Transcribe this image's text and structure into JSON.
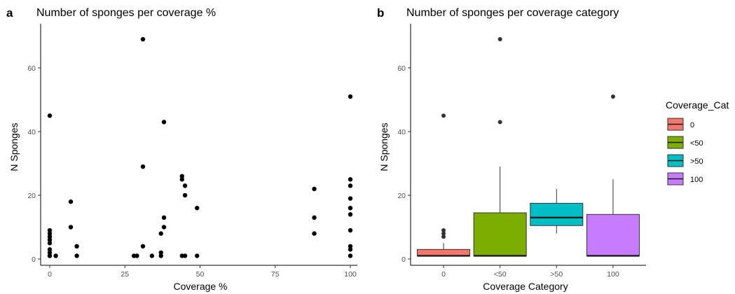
{
  "chart_data": [
    {
      "panel": "a",
      "type": "scatter",
      "title": "Number of sponges per coverage %",
      "xlabel": "Coverage %",
      "ylabel": "N Sponges",
      "xlim": [
        0,
        100
      ],
      "ylim": [
        0,
        70
      ],
      "xticks": [
        0,
        25,
        50,
        75,
        100
      ],
      "yticks": [
        0,
        20,
        40,
        60
      ],
      "grid": false,
      "point_color": "#000000",
      "points": [
        [
          0,
          45
        ],
        [
          0,
          9
        ],
        [
          0,
          8
        ],
        [
          0,
          7
        ],
        [
          0,
          6
        ],
        [
          0,
          5
        ],
        [
          0,
          3
        ],
        [
          0,
          2
        ],
        [
          0,
          1
        ],
        [
          0,
          1
        ],
        [
          2,
          1
        ],
        [
          7,
          18
        ],
        [
          7,
          10
        ],
        [
          9,
          4
        ],
        [
          9,
          1
        ],
        [
          28,
          1
        ],
        [
          29,
          1
        ],
        [
          31,
          69
        ],
        [
          31,
          29
        ],
        [
          31,
          4
        ],
        [
          34,
          1
        ],
        [
          37,
          2
        ],
        [
          37,
          1
        ],
        [
          37,
          8
        ],
        [
          38,
          43
        ],
        [
          38,
          13
        ],
        [
          38,
          10
        ],
        [
          44,
          26
        ],
        [
          44,
          25
        ],
        [
          44,
          1
        ],
        [
          45,
          23
        ],
        [
          45,
          20
        ],
        [
          45,
          1
        ],
        [
          49,
          16
        ],
        [
          49,
          1
        ],
        [
          88,
          22
        ],
        [
          88,
          13
        ],
        [
          88,
          8
        ],
        [
          100,
          51
        ],
        [
          100,
          25
        ],
        [
          100,
          23
        ],
        [
          100,
          19
        ],
        [
          100,
          16
        ],
        [
          100,
          14
        ],
        [
          100,
          9
        ],
        [
          100,
          4
        ],
        [
          100,
          3
        ],
        [
          100,
          1
        ]
      ]
    },
    {
      "panel": "b",
      "type": "box",
      "title": "Number of sponges per coverage category",
      "xlabel": "Coverage Category",
      "ylabel": "N Sponges",
      "ylim": [
        0,
        70
      ],
      "yticks": [
        0,
        20,
        40,
        60
      ],
      "grid": false,
      "legend": {
        "title": "Coverage_Cat",
        "position": "right"
      },
      "categories": [
        "0",
        "<50",
        ">50",
        "100"
      ],
      "boxes": [
        {
          "name": "0",
          "color": "#F8766D",
          "whisker_low": 1,
          "q1": 1,
          "median": 1,
          "q3": 3,
          "whisker_high": 5,
          "outliers": [
            45,
            9,
            8,
            7
          ]
        },
        {
          "name": "<50",
          "color": "#7CAE00",
          "whisker_low": 1,
          "q1": 1,
          "median": 1,
          "q3": 14.5,
          "whisker_high": 29,
          "outliers": [
            69,
            43
          ]
        },
        {
          "name": ">50",
          "color": "#00BFC4",
          "whisker_low": 8,
          "q1": 10.5,
          "median": 13,
          "q3": 17.5,
          "whisker_high": 22,
          "outliers": []
        },
        {
          "name": "100",
          "color": "#C77CFF",
          "whisker_low": 1,
          "q1": 1,
          "median": 1,
          "q3": 14,
          "whisker_high": 25,
          "outliers": [
            51
          ]
        }
      ]
    }
  ]
}
